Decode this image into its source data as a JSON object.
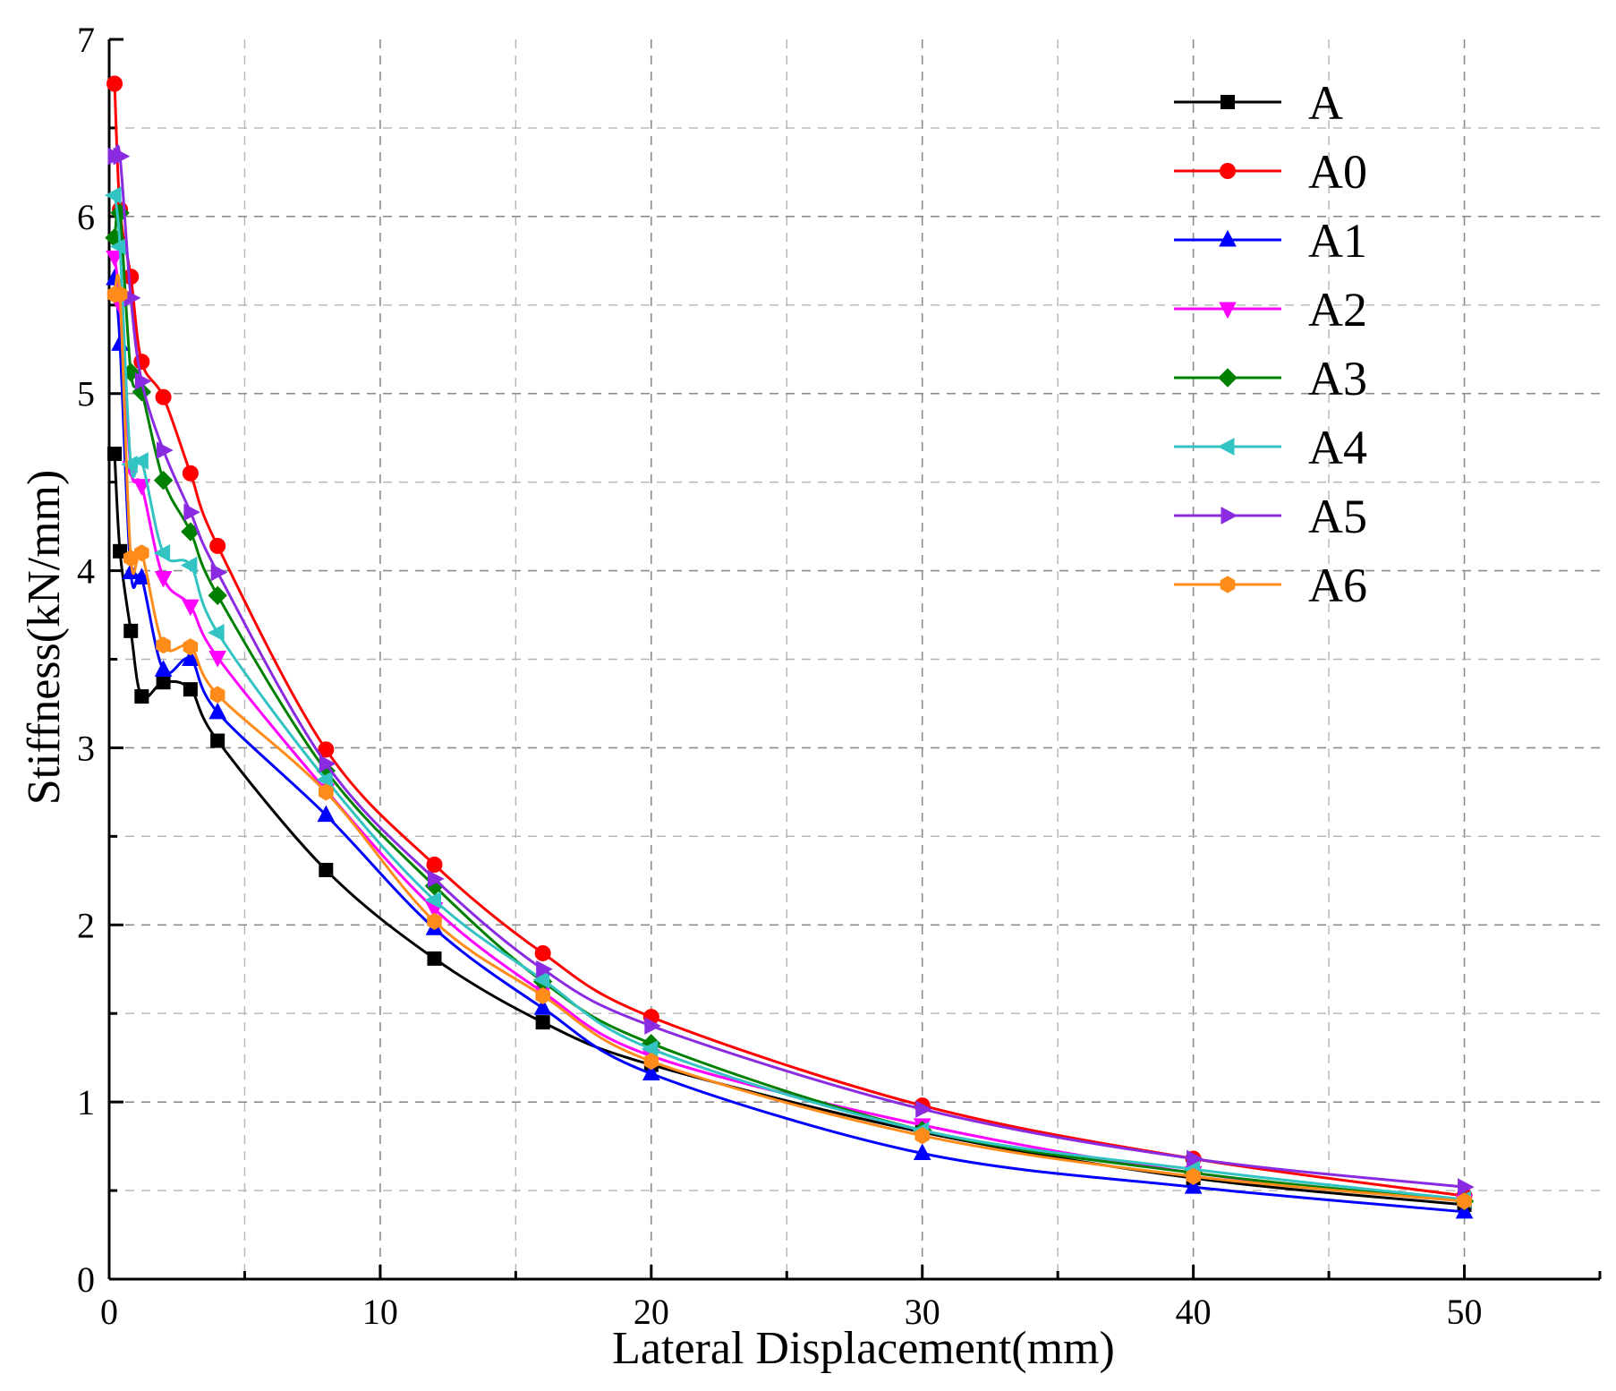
{
  "chart_data": {
    "type": "line",
    "title": "",
    "xlabel": "Lateral Displacement(mm)",
    "ylabel": "Stiffness(kN/mm)",
    "xlim": [
      0,
      55
    ],
    "ylim": [
      0,
      7
    ],
    "x_ticks": [
      0,
      10,
      20,
      30,
      40,
      50
    ],
    "y_ticks": [
      0,
      1,
      2,
      3,
      4,
      5,
      6,
      7
    ],
    "grid": true,
    "legend_position": "top-right",
    "series": [
      {
        "name": "A",
        "color": "#000000",
        "marker": "square",
        "x": [
          0.2,
          0.4,
          0.8,
          1.2,
          2,
          3,
          4,
          8,
          12,
          16,
          20,
          30,
          40,
          50
        ],
        "y": [
          4.66,
          4.11,
          3.66,
          3.29,
          3.37,
          3.33,
          3.04,
          2.31,
          1.81,
          1.45,
          1.21,
          0.83,
          0.57,
          0.42
        ]
      },
      {
        "name": "A0",
        "color": "#ff0000",
        "marker": "circle",
        "x": [
          0.2,
          0.4,
          0.8,
          1.2,
          2,
          3,
          4,
          8,
          12,
          16,
          20,
          30,
          40,
          50
        ],
        "y": [
          6.75,
          6.04,
          5.66,
          5.18,
          4.98,
          4.55,
          4.14,
          2.99,
          2.34,
          1.84,
          1.48,
          0.98,
          0.68,
          0.47
        ]
      },
      {
        "name": "A1",
        "color": "#0000ff",
        "marker": "triangle-up",
        "x": [
          0.2,
          0.4,
          0.8,
          1.2,
          2,
          3,
          4,
          8,
          12,
          16,
          20,
          30,
          40,
          50
        ],
        "y": [
          5.65,
          5.28,
          3.99,
          3.96,
          3.44,
          3.5,
          3.2,
          2.62,
          1.98,
          1.53,
          1.16,
          0.71,
          0.52,
          0.38
        ]
      },
      {
        "name": "A2",
        "color": "#ff00ff",
        "marker": "triangle-down",
        "x": [
          0.2,
          0.4,
          0.8,
          1.2,
          2,
          3,
          4,
          8,
          12,
          16,
          20,
          30,
          40,
          50
        ],
        "y": [
          5.77,
          5.5,
          4.58,
          4.48,
          3.96,
          3.8,
          3.51,
          2.76,
          2.09,
          1.62,
          1.26,
          0.87,
          0.6,
          0.44
        ]
      },
      {
        "name": "A3",
        "color": "#008000",
        "marker": "diamond",
        "x": [
          0.2,
          0.4,
          0.8,
          1.2,
          2,
          3,
          4,
          8,
          12,
          16,
          20,
          30,
          40,
          50
        ],
        "y": [
          5.88,
          6.02,
          5.12,
          5.01,
          4.51,
          4.22,
          3.86,
          2.87,
          2.22,
          1.68,
          1.33,
          0.84,
          0.6,
          0.44
        ]
      },
      {
        "name": "A4",
        "color": "#33c3c3",
        "marker": "triangle-left",
        "x": [
          0.2,
          0.4,
          0.8,
          1.2,
          2,
          3,
          4,
          8,
          12,
          16,
          20,
          30,
          40,
          50
        ],
        "y": [
          6.12,
          5.83,
          4.6,
          4.62,
          4.1,
          4.03,
          3.65,
          2.82,
          2.14,
          1.69,
          1.3,
          0.84,
          0.62,
          0.45
        ]
      },
      {
        "name": "A5",
        "color": "#8a2be2",
        "marker": "triangle-right",
        "x": [
          0.2,
          0.4,
          0.8,
          1.2,
          2,
          3,
          4,
          8,
          12,
          16,
          20,
          30,
          40,
          50
        ],
        "y": [
          6.34,
          6.34,
          5.54,
          5.07,
          4.68,
          4.33,
          3.99,
          2.91,
          2.26,
          1.75,
          1.43,
          0.96,
          0.68,
          0.52
        ]
      },
      {
        "name": "A6",
        "color": "#ff8c1a",
        "marker": "hexagon",
        "x": [
          0.2,
          0.4,
          0.8,
          1.2,
          2,
          3,
          4,
          8,
          12,
          16,
          20,
          30,
          40,
          50
        ],
        "y": [
          5.56,
          5.56,
          4.07,
          4.1,
          3.58,
          3.57,
          3.3,
          2.75,
          2.02,
          1.6,
          1.23,
          0.81,
          0.58,
          0.44
        ]
      }
    ]
  }
}
